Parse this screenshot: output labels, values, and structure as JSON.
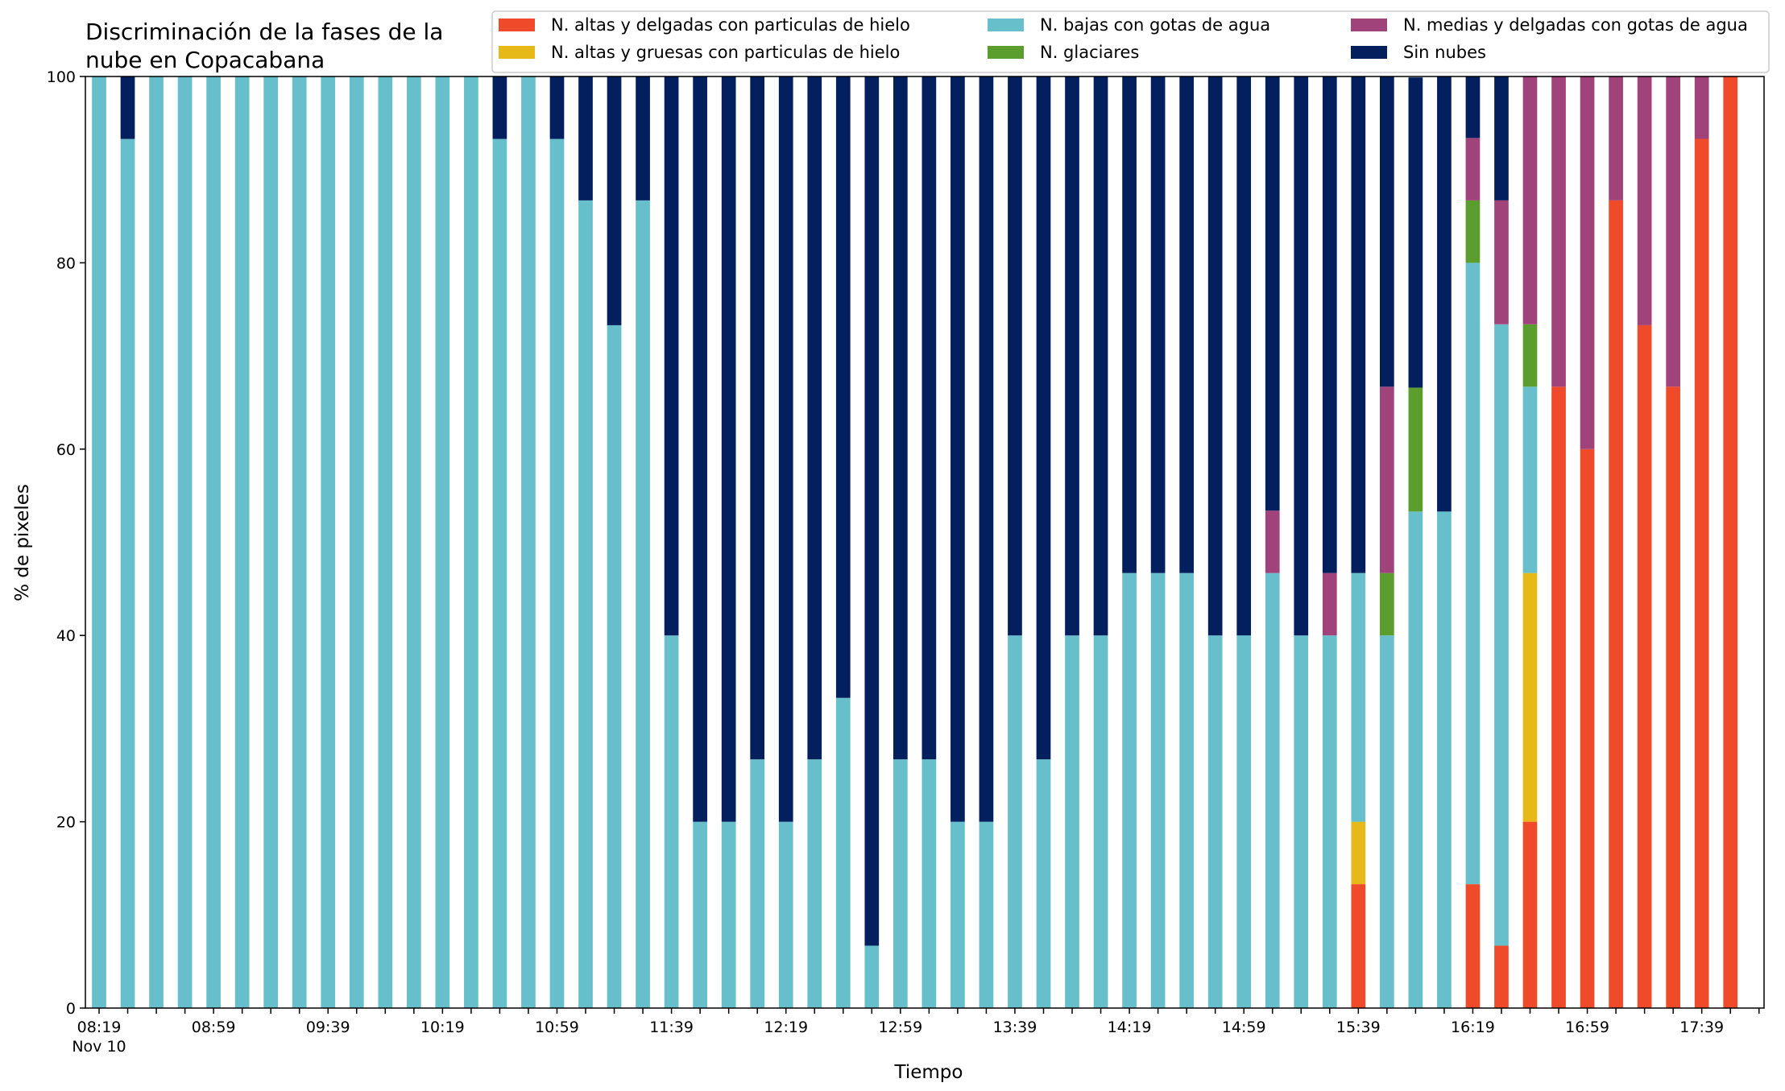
{
  "chart_data": {
    "type": "bar",
    "stacked": true,
    "title_lines": [
      "Discriminación de la fases de la",
      "nube en Copacabana"
    ],
    "xlabel": "Tiempo",
    "ylabel": "% de pixeles",
    "ylim": [
      0,
      100
    ],
    "yticks": [
      0,
      20,
      40,
      60,
      80,
      100
    ],
    "grid": false,
    "legend_position": "top-right",
    "x_tick_labels": [
      {
        "index": 0,
        "label": "08:19",
        "sublabel": "Nov 10"
      },
      {
        "index": 4,
        "label": "08:59"
      },
      {
        "index": 8,
        "label": "09:39"
      },
      {
        "index": 12,
        "label": "10:19"
      },
      {
        "index": 16,
        "label": "10:59"
      },
      {
        "index": 20,
        "label": "11:39"
      },
      {
        "index": 24,
        "label": "12:19"
      },
      {
        "index": 28,
        "label": "12:59"
      },
      {
        "index": 32,
        "label": "13:39"
      },
      {
        "index": 36,
        "label": "14:19"
      },
      {
        "index": 40,
        "label": "14:59"
      },
      {
        "index": 44,
        "label": "15:39"
      },
      {
        "index": 48,
        "label": "16:19"
      },
      {
        "index": 52,
        "label": "16:59"
      },
      {
        "index": 56,
        "label": "17:39"
      }
    ],
    "series": [
      {
        "name": "N. altas y delgadas con particulas de hielo",
        "color": "#ef4a2a",
        "values": [
          0,
          0,
          0,
          0,
          0,
          0,
          0,
          0,
          0,
          0,
          0,
          0,
          0,
          0,
          0,
          0,
          0,
          0,
          0,
          0,
          0,
          0,
          0,
          0,
          0,
          0,
          0,
          0,
          0,
          0,
          0,
          0,
          0,
          0,
          0,
          0,
          0,
          0,
          0,
          0,
          0,
          0,
          0,
          0,
          13.3,
          0,
          0,
          0,
          13.3,
          6.7,
          20,
          66.7,
          60,
          86.7,
          73.3,
          66.7,
          93.3,
          100
        ]
      },
      {
        "name": "N. altas y gruesas con particulas de hielo",
        "color": "#e6b818",
        "values": [
          0,
          0,
          0,
          0,
          0,
          0,
          0,
          0,
          0,
          0,
          0,
          0,
          0,
          0,
          0,
          0,
          0,
          0,
          0,
          0,
          0,
          0,
          0,
          0,
          0,
          0,
          0,
          0,
          0,
          0,
          0,
          0,
          0,
          0,
          0,
          0,
          0,
          0,
          0,
          0,
          0,
          0,
          0,
          0,
          6.7,
          0,
          0,
          0,
          0,
          0,
          26.7,
          0,
          0,
          0,
          0,
          0,
          0,
          0
        ]
      },
      {
        "name": "N. bajas con gotas de agua",
        "color": "#66bfca",
        "values": [
          100,
          93.3,
          100,
          100,
          100,
          100,
          100,
          100,
          100,
          100,
          100,
          100,
          100,
          100,
          93.3,
          100,
          93.3,
          86.7,
          73.3,
          86.7,
          40,
          20,
          20,
          26.7,
          20,
          26.7,
          33.3,
          6.7,
          26.7,
          26.7,
          20,
          20,
          40,
          26.7,
          40,
          40,
          46.7,
          46.7,
          46.7,
          40,
          40,
          46.7,
          40,
          40,
          26.7,
          40,
          53.3,
          53.3,
          66.7,
          66.7,
          20,
          0,
          0,
          0,
          0,
          0,
          0,
          0
        ]
      },
      {
        "name": "N. glaciares",
        "color": "#5b9e2e",
        "values": [
          0,
          0,
          0,
          0,
          0,
          0,
          0,
          0,
          0,
          0,
          0,
          0,
          0,
          0,
          0,
          0,
          0,
          0,
          0,
          0,
          0,
          0,
          0,
          0,
          0,
          0,
          0,
          0,
          0,
          0,
          0,
          0,
          0,
          0,
          0,
          0,
          0,
          0,
          0,
          0,
          0,
          0,
          0,
          0,
          0,
          6.7,
          13.3,
          0,
          6.7,
          0,
          6.7,
          0,
          0,
          0,
          0,
          0,
          0,
          0
        ]
      },
      {
        "name": "N. medias y delgadas con gotas de agua",
        "color": "#a1437b",
        "values": [
          0,
          0,
          0,
          0,
          0,
          0,
          0,
          0,
          0,
          0,
          0,
          0,
          0,
          0,
          0,
          0,
          0,
          0,
          0,
          0,
          0,
          0,
          0,
          0,
          0,
          0,
          0,
          0,
          0,
          0,
          0,
          0,
          0,
          0,
          0,
          0,
          0,
          0,
          0,
          0,
          0,
          6.7,
          0,
          6.7,
          0,
          20,
          0,
          0,
          6.7,
          13.3,
          26.7,
          33.3,
          40,
          13.3,
          26.7,
          33.3,
          6.7,
          0
        ]
      },
      {
        "name": "Sin nubes",
        "color": "#031f5e",
        "values": [
          0,
          6.7,
          0,
          0,
          0,
          0,
          0,
          0,
          0,
          0,
          0,
          0,
          0,
          0,
          6.7,
          0,
          6.7,
          13.3,
          26.7,
          13.3,
          60,
          80,
          80,
          73.3,
          80,
          73.3,
          66.7,
          93.3,
          73.3,
          73.3,
          80,
          80,
          60,
          73.3,
          60,
          60,
          53.3,
          53.3,
          53.3,
          60,
          60,
          46.7,
          60,
          53.3,
          53.3,
          33.3,
          33.3,
          46.7,
          6.7,
          13.3,
          0,
          0,
          0,
          0,
          0,
          0,
          0,
          0
        ]
      }
    ]
  }
}
